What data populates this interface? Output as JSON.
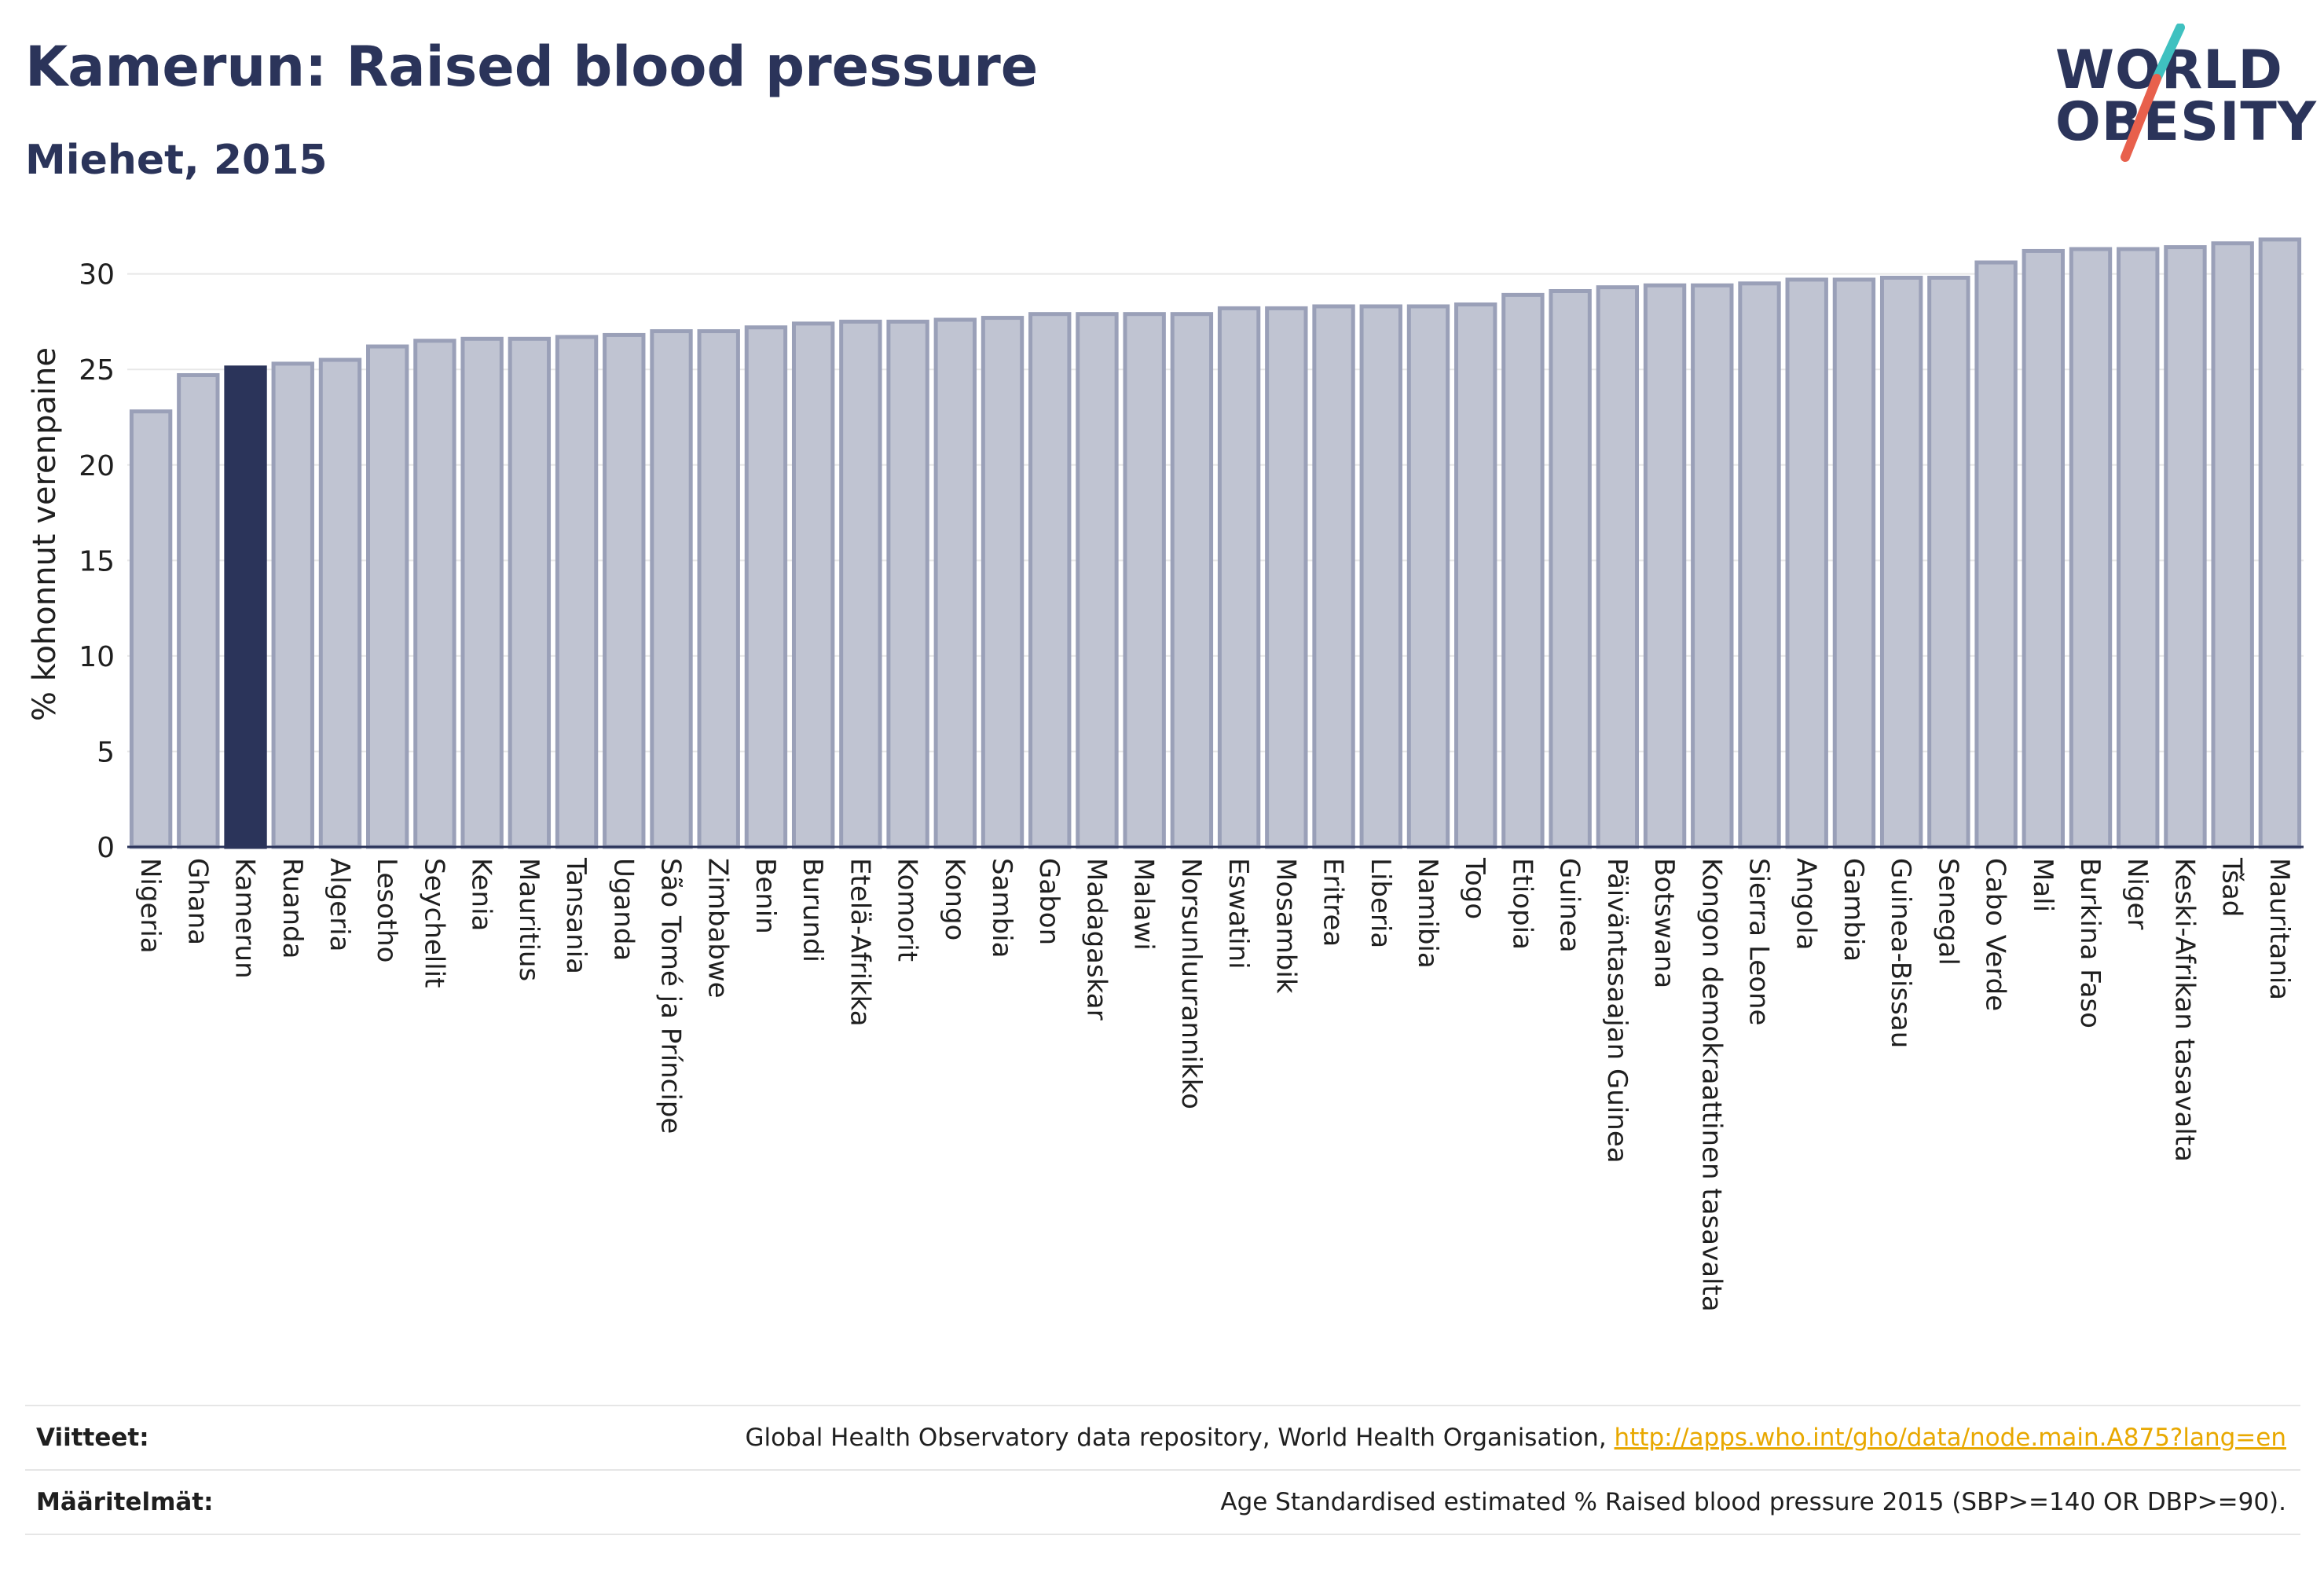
{
  "header": {
    "title": "Kamerun: Raised blood pressure",
    "subtitle": "Miehet, 2015"
  },
  "logo": {
    "line1": "WORLD",
    "line2": "OBESITY",
    "accent_colors": [
      "#3fc1c0",
      "#e8604c"
    ]
  },
  "colors": {
    "bar": "#c0c4d2",
    "bar_border": "#9aa0b8",
    "highlight": "#2b345a",
    "grid": "#e8e8e8"
  },
  "chart_data": {
    "type": "bar",
    "ylabel": "% kohonnut verenpaine",
    "ylim": [
      0,
      32
    ],
    "yticks": [
      0,
      5,
      10,
      15,
      20,
      25,
      30
    ],
    "grid": true,
    "highlight": "Kamerun",
    "categories": [
      "Nigeria",
      "Ghana",
      "Kamerun",
      "Ruanda",
      "Algeria",
      "Lesotho",
      "Seychellit",
      "Kenia",
      "Mauritius",
      "Tansania",
      "Uganda",
      "São Tomé ja Príncipe",
      "Zimbabwe",
      "Benin",
      "Burundi",
      "Etelä-Afrikka",
      "Komorit",
      "Kongo",
      "Sambia",
      "Gabon",
      "Madagaskar",
      "Malawi",
      "Norsunluurannikko",
      "Eswatini",
      "Mosambik",
      "Eritrea",
      "Liberia",
      "Namibia",
      "Togo",
      "Etiopia",
      "Guinea",
      "Päiväntasaajan Guinea",
      "Botswana",
      "Kongon demokraattinen tasavalta",
      "Sierra Leone",
      "Angola",
      "Gambia",
      "Guinea-Bissau",
      "Senegal",
      "Cabo Verde",
      "Mali",
      "Burkina Faso",
      "Niger",
      "Keski-Afrikan tasavalta",
      "Tšad",
      "Mauritania"
    ],
    "values": [
      22.8,
      24.7,
      25.1,
      25.3,
      25.5,
      26.2,
      26.5,
      26.6,
      26.6,
      26.7,
      26.8,
      27.0,
      27.0,
      27.2,
      27.4,
      27.5,
      27.5,
      27.6,
      27.7,
      27.9,
      27.9,
      27.9,
      27.9,
      28.2,
      28.2,
      28.3,
      28.3,
      28.3,
      28.4,
      28.9,
      29.1,
      29.3,
      29.4,
      29.4,
      29.5,
      29.7,
      29.7,
      29.8,
      29.8,
      30.6,
      31.2,
      31.3,
      31.3,
      31.4,
      31.6,
      31.8
    ]
  },
  "footer": {
    "sources_label": "Viitteet:",
    "sources_text": "Global Health Observatory data repository, World Health Organisation, ",
    "sources_link": "http://apps.who.int/gho/data/node.main.A875?lang=en",
    "definitions_label": "Määritelmät:",
    "definitions_text": "Age Standardised estimated % Raised blood pressure 2015 (SBP>=140 OR DBP>=90)."
  }
}
